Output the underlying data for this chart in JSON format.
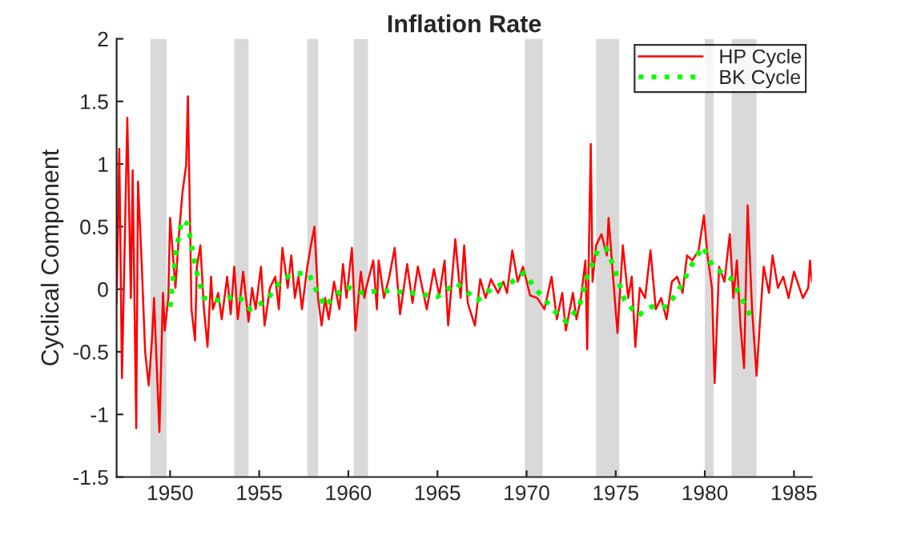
{
  "chart_data": {
    "type": "line",
    "title": "Inflation Rate",
    "ylabel": "Cyclical Component",
    "xlim": [
      1947,
      1986
    ],
    "xticks": [
      1950,
      1955,
      1960,
      1965,
      1970,
      1975,
      1980,
      1985
    ],
    "ylim": [
      -1.5,
      2
    ],
    "yticks": [
      -1.5,
      -1,
      -0.5,
      0,
      0.5,
      1,
      1.5,
      2
    ],
    "grid": false,
    "legend": "top right",
    "bands": [
      {
        "axis": "x",
        "from": 1948.9,
        "to": 1949.8,
        "color": "#d9d9d9"
      },
      {
        "axis": "x",
        "from": 1953.6,
        "to": 1954.4,
        "color": "#d9d9d9"
      },
      {
        "axis": "x",
        "from": 1957.7,
        "to": 1958.3,
        "color": "#d9d9d9"
      },
      {
        "axis": "x",
        "from": 1960.3,
        "to": 1961.1,
        "color": "#d9d9d9"
      },
      {
        "axis": "x",
        "from": 1969.9,
        "to": 1970.9,
        "color": "#d9d9d9"
      },
      {
        "axis": "x",
        "from": 1973.9,
        "to": 1975.2,
        "color": "#d9d9d9"
      },
      {
        "axis": "x",
        "from": 1980.0,
        "to": 1980.5,
        "color": "#d9d9d9"
      },
      {
        "axis": "x",
        "from": 1981.5,
        "to": 1982.9,
        "color": "#d9d9d9"
      }
    ],
    "series": [
      {
        "name": "HP Cycle",
        "color": "#ff0000",
        "line_style": "solid",
        "marker": "none",
        "x": [
          1947.0,
          1947.15,
          1947.3,
          1947.6,
          1947.8,
          1947.9,
          1948.1,
          1948.2,
          1948.4,
          1948.6,
          1948.8,
          1949.0,
          1949.1,
          1949.4,
          1949.6,
          1949.7,
          1949.9,
          1950.0,
          1950.3,
          1950.5,
          1950.7,
          1950.9,
          1951.0,
          1951.2,
          1951.4,
          1951.5,
          1951.7,
          1951.9,
          1952.1,
          1952.3,
          1952.4,
          1952.7,
          1952.9,
          1953.2,
          1953.4,
          1953.6,
          1953.8,
          1954.1,
          1954.4,
          1954.6,
          1954.8,
          1955.1,
          1955.3,
          1955.6,
          1955.9,
          1956.1,
          1956.3,
          1956.6,
          1956.8,
          1957.0,
          1957.2,
          1957.4,
          1957.7,
          1957.9,
          1958.1,
          1958.3,
          1958.5,
          1958.7,
          1958.9,
          1959.2,
          1959.5,
          1959.7,
          1959.9,
          1960.2,
          1960.4,
          1960.7,
          1960.9,
          1961.0,
          1961.4,
          1961.6,
          1961.7,
          1962.0,
          1962.3,
          1962.6,
          1962.9,
          1963.3,
          1963.6,
          1963.9,
          1964.4,
          1964.8,
          1965.1,
          1965.4,
          1965.6,
          1966.0,
          1966.3,
          1966.5,
          1966.7,
          1967.1,
          1967.4,
          1967.7,
          1968.0,
          1968.4,
          1968.7,
          1968.9,
          1969.2,
          1969.5,
          1969.8,
          1970.2,
          1970.6,
          1971.0,
          1971.4,
          1971.7,
          1972.0,
          1972.2,
          1972.6,
          1972.8,
          1973.05,
          1973.3,
          1973.4,
          1973.6,
          1973.7,
          1973.9,
          1974.2,
          1974.5,
          1974.6,
          1974.9,
          1975.1,
          1975.4,
          1975.7,
          1975.9,
          1976.1,
          1976.35,
          1976.65,
          1976.95,
          1977.25,
          1977.55,
          1977.85,
          1978.15,
          1978.45,
          1978.75,
          1979.0,
          1979.3,
          1979.65,
          1979.95,
          1980.15,
          1980.4,
          1980.55,
          1980.8,
          1981.1,
          1981.4,
          1981.6,
          1981.8,
          1982.0,
          1982.2,
          1982.4,
          1982.65,
          1982.9,
          1983.1,
          1983.3,
          1983.6,
          1983.8,
          1984.1,
          1984.4,
          1984.7,
          1985.0,
          1985.5,
          1985.8,
          1985.9,
          1986.0
        ],
        "values": [
          -0.11,
          1.12,
          -0.71,
          1.37,
          -0.07,
          0.95,
          -1.11,
          0.86,
          0.23,
          -0.5,
          -0.77,
          -0.37,
          -0.07,
          -1.14,
          -0.03,
          -0.33,
          -0.07,
          0.57,
          0.01,
          0.44,
          0.78,
          0.99,
          1.54,
          -0.16,
          -0.41,
          0.18,
          0.35,
          -0.16,
          -0.46,
          0.1,
          -0.16,
          -0.03,
          -0.24,
          0.1,
          -0.2,
          0.18,
          -0.24,
          0.14,
          -0.26,
          0.01,
          -0.16,
          0.18,
          -0.29,
          0.01,
          0.1,
          -0.16,
          0.33,
          0.01,
          0.27,
          -0.07,
          0.1,
          -0.16,
          0.18,
          0.35,
          0.5,
          -0.07,
          -0.29,
          -0.07,
          -0.24,
          0.06,
          -0.16,
          0.2,
          -0.07,
          0.33,
          -0.33,
          0.14,
          -0.07,
          0.01,
          0.23,
          -0.16,
          0.23,
          -0.07,
          0.1,
          0.33,
          -0.2,
          0.2,
          -0.11,
          0.18,
          -0.16,
          0.16,
          -0.05,
          0.23,
          -0.29,
          0.4,
          -0.07,
          0.35,
          -0.11,
          -0.29,
          0.08,
          -0.07,
          0.08,
          -0.03,
          0.06,
          -0.03,
          0.31,
          0.06,
          0.18,
          -0.05,
          -0.07,
          -0.16,
          0.1,
          -0.24,
          -0.03,
          -0.33,
          -0.03,
          -0.24,
          -0.07,
          0.23,
          -0.48,
          1.16,
          0.06,
          0.35,
          0.44,
          0.27,
          0.57,
          0.01,
          -0.35,
          0.35,
          -0.07,
          0.1,
          -0.46,
          0.01,
          -0.07,
          0.31,
          -0.16,
          -0.07,
          -0.24,
          0.06,
          0.1,
          -0.03,
          0.27,
          0.23,
          0.31,
          0.59,
          0.27,
          0.01,
          -0.75,
          0.18,
          0.06,
          0.44,
          -0.07,
          0.23,
          -0.29,
          -0.63,
          0.67,
          -0.16,
          -0.69,
          -0.24,
          0.18,
          -0.03,
          0.27,
          0.01,
          0.1,
          -0.07,
          0.14,
          -0.07,
          0.01,
          0.23,
          0.06
        ]
      },
      {
        "name": "BK Cycle",
        "color": "#00ff00",
        "line_style": "dotted",
        "marker": "none",
        "x": [
          1950.0,
          1950.3,
          1950.65,
          1951.0,
          1951.25,
          1951.55,
          1951.9,
          1952.75,
          1953.8,
          1954.5,
          1955.4,
          1956.3,
          1957.05,
          1957.8,
          1958.2,
          1958.7,
          1959.1,
          1959.9,
          1960.8,
          1961.8,
          1962.9,
          1964.1,
          1965.0,
          1966.05,
          1967.25,
          1968.15,
          1969.2,
          1969.85,
          1970.7,
          1971.6,
          1972.25,
          1972.95,
          1973.4,
          1974.0,
          1974.45,
          1974.9,
          1975.5,
          1976.25,
          1977.0,
          1977.9,
          1978.6,
          1979.4,
          1979.9,
          1980.45,
          1981.5,
          1982.2,
          1982.7
        ],
        "values": [
          -0.14,
          0.27,
          0.55,
          0.52,
          0.31,
          0.1,
          -0.07,
          -0.09,
          -0.05,
          -0.16,
          -0.09,
          0.08,
          0.13,
          0.12,
          -0.01,
          -0.14,
          -0.07,
          0.02,
          -0.03,
          -0.01,
          -0.02,
          -0.04,
          -0.06,
          0.05,
          -0.09,
          0.02,
          0.06,
          0.13,
          -0.03,
          -0.18,
          -0.26,
          -0.14,
          0.1,
          0.31,
          0.33,
          0.18,
          -0.09,
          -0.21,
          -0.14,
          -0.14,
          0.01,
          0.23,
          0.34,
          0.18,
          0.08,
          -0.11,
          -0.26
        ]
      }
    ]
  }
}
